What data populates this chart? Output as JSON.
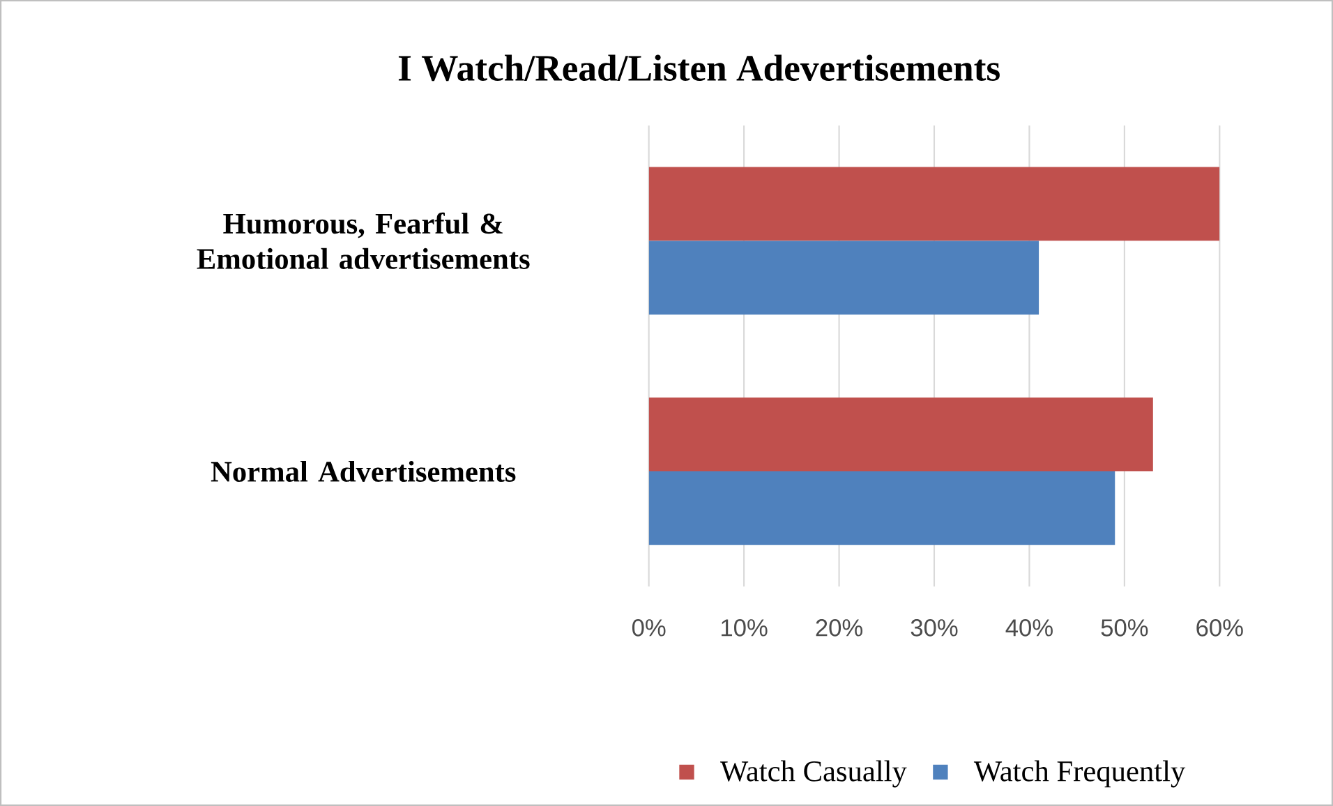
{
  "chart_data": {
    "type": "bar",
    "orientation": "horizontal",
    "title": "I Watch/Read/Listen  Adevertisements",
    "categories": [
      "Humorous, Fearful & Emotional advertisements",
      "Normal Advertisements"
    ],
    "series": [
      {
        "name": "Watch Casually",
        "color": "#c0504d",
        "values": [
          60,
          53
        ]
      },
      {
        "name": "Watch Frequently",
        "color": "#4f81bd",
        "values": [
          41,
          49
        ]
      }
    ],
    "xlim": [
      0,
      60
    ],
    "xticks": [
      {
        "value": 0,
        "label": "0%"
      },
      {
        "value": 10,
        "label": "10%"
      },
      {
        "value": 20,
        "label": "20%"
      },
      {
        "value": 30,
        "label": "30%"
      },
      {
        "value": 40,
        "label": "40%"
      },
      {
        "value": 50,
        "label": "50%"
      },
      {
        "value": 60,
        "label": "60%"
      }
    ],
    "grid": "x",
    "legend": "bottom"
  }
}
